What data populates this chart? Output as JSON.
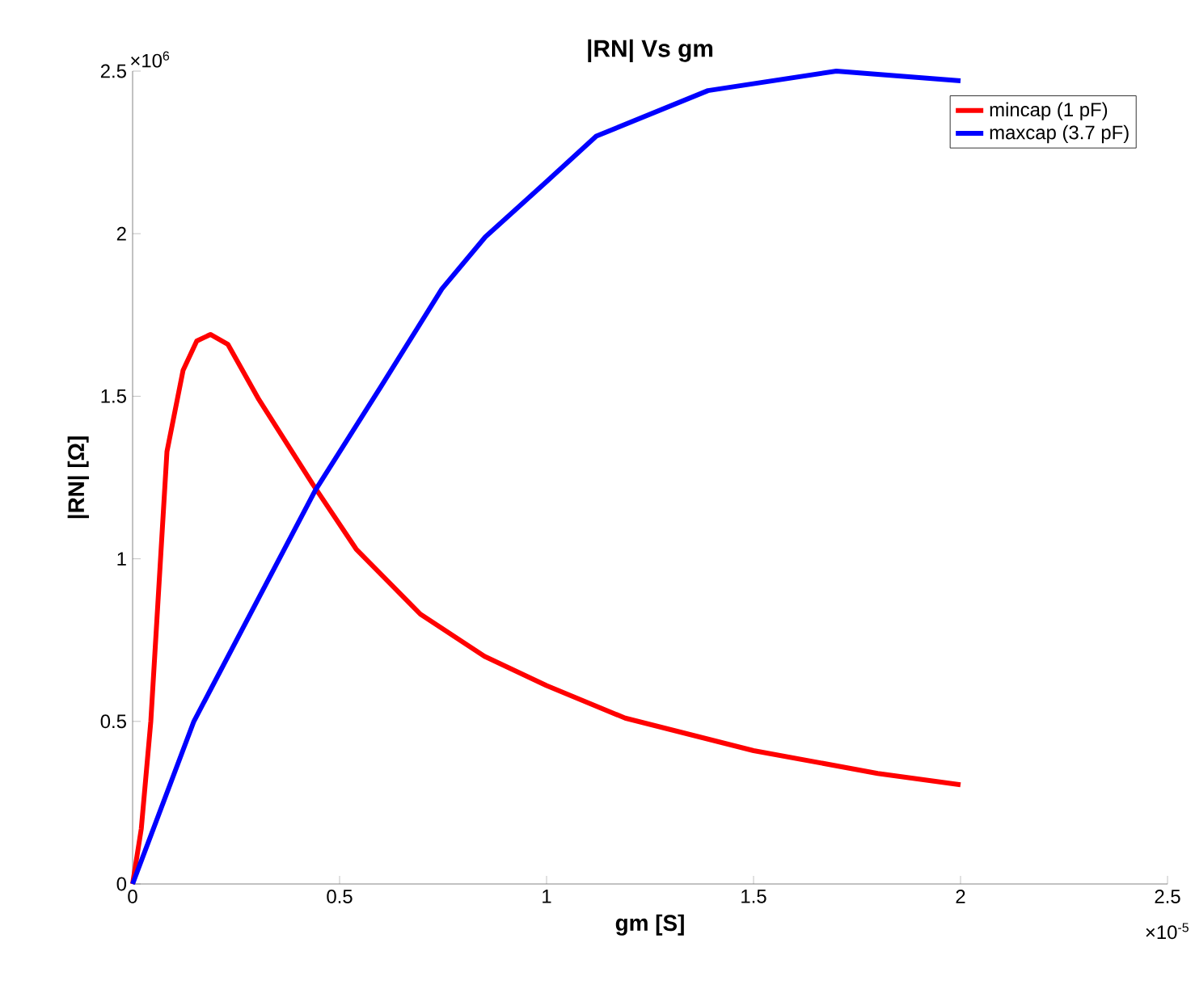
{
  "chart_data": {
    "type": "line",
    "title": "|RN| Vs gm",
    "xlabel": "gm [S]",
    "ylabel": "|RN| [Ω]",
    "xlim": [
      0,
      2.5
    ],
    "ylim": [
      0,
      2.5
    ],
    "xticks": [
      0,
      0.5,
      1,
      1.5,
      2,
      2.5
    ],
    "yticks": [
      0,
      0.5,
      1,
      1.5,
      2,
      2.5
    ],
    "annotations": [
      "×10$^{6}$",
      "×10$^{-5}$"
    ],
    "legend": "top right",
    "series": [
      {
        "name": "mincap (1 pF)",
        "color": "#ff0000",
        "x": [
          0,
          0.021,
          0.044,
          0.083,
          0.122,
          0.155,
          0.188,
          0.23,
          0.305,
          0.435,
          0.54,
          0.695,
          0.85,
          1.0,
          1.19,
          1.5,
          1.8,
          2.0
        ],
        "values": [
          0,
          0.17,
          0.5,
          1.33,
          1.58,
          1.67,
          1.69,
          1.66,
          1.49,
          1.23,
          1.03,
          0.83,
          0.7,
          0.61,
          0.51,
          0.41,
          0.34,
          0.305
        ]
      },
      {
        "name": "maxcap (3.7 pF)",
        "color": "#0000ff",
        "x": [
          0,
          0.148,
          0.441,
          0.6,
          0.747,
          0.852,
          1.0,
          1.12,
          1.39,
          1.7,
          2.0
        ],
        "values": [
          0,
          0.5,
          1.21,
          1.53,
          1.83,
          1.99,
          2.16,
          2.3,
          2.44,
          2.5,
          2.47
        ]
      }
    ]
  }
}
